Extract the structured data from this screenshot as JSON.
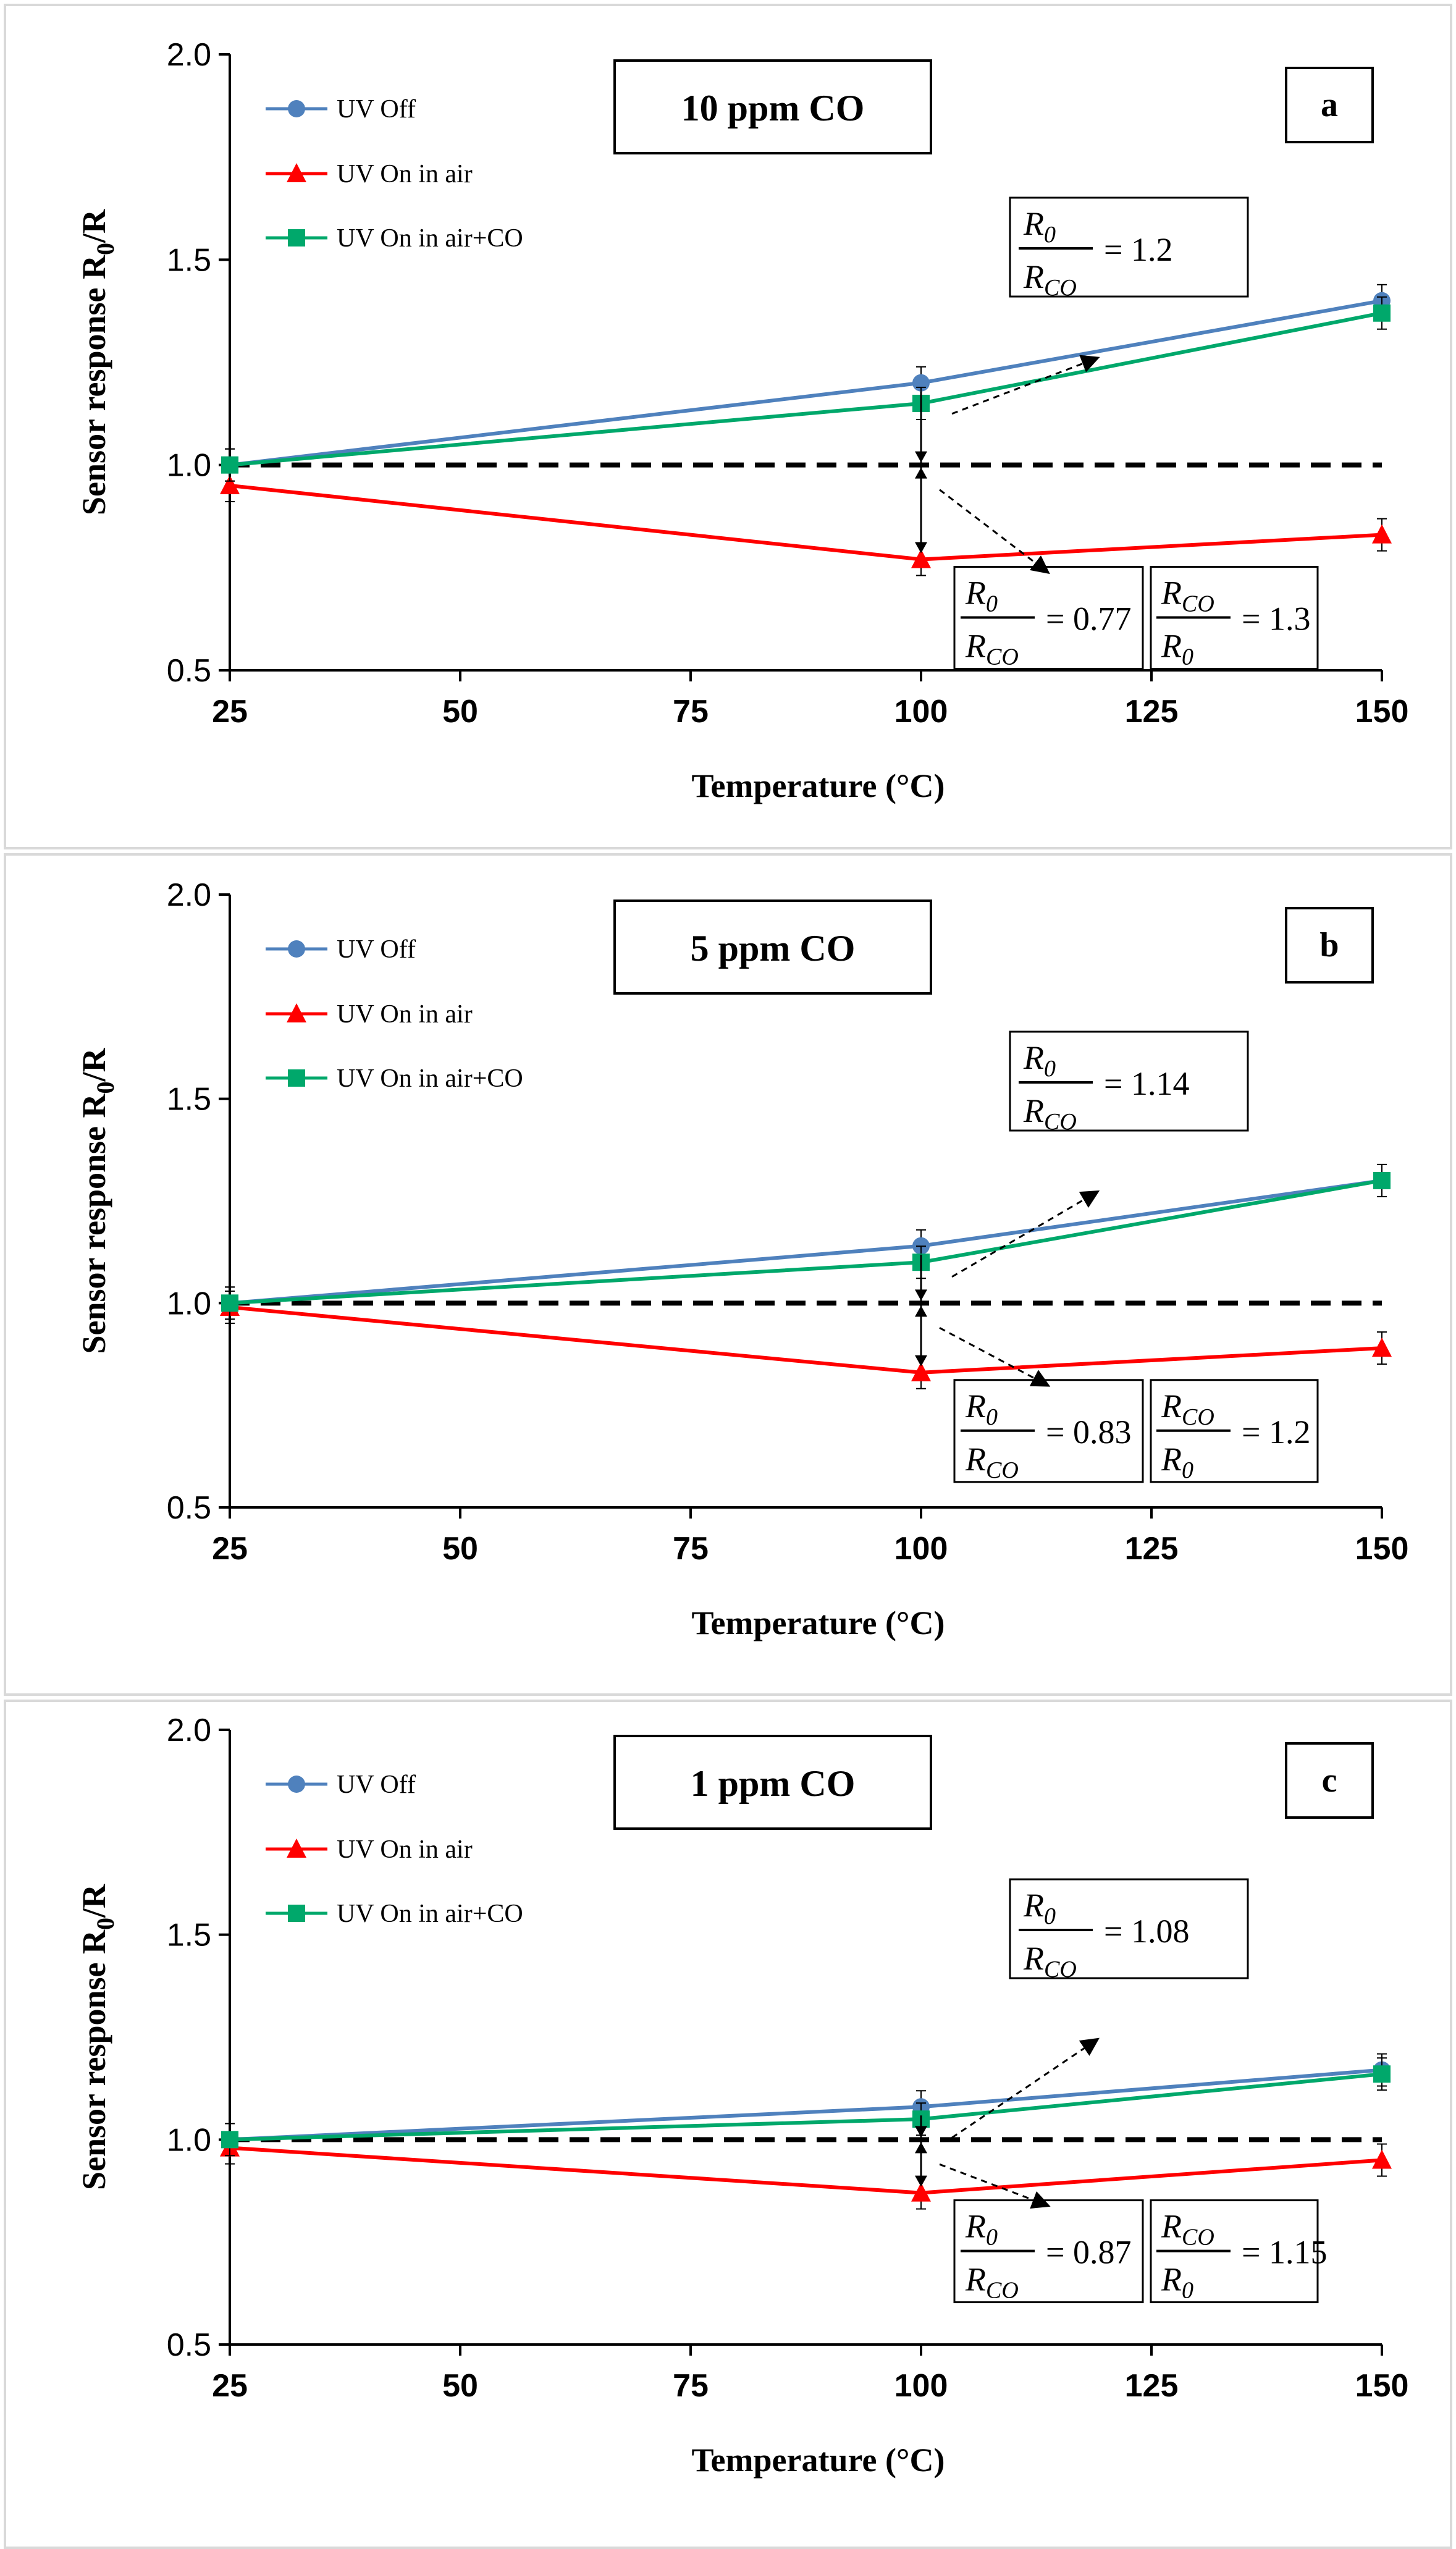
{
  "chart_data": [
    {
      "type": "line",
      "panel_letter": "a",
      "title": "10 ppm CO",
      "xlabel": "Temperature (°C)",
      "ylabel": "Sensor response R",
      "ylabel_sub": "0",
      "ylabel_tail": "/R",
      "x": [
        25,
        100,
        150
      ],
      "xlim": [
        25,
        150
      ],
      "ylim": [
        0.5,
        2.0
      ],
      "xticks": [
        "25",
        "50",
        "75",
        "100",
        "125",
        "150"
      ],
      "yticks": [
        "0.5",
        "1.0",
        "1.5",
        "2.0"
      ],
      "reference_line": 1.0,
      "series": [
        {
          "name": "UV Off",
          "values": [
            1.0,
            1.2,
            1.4
          ],
          "color": "#4f81bd",
          "marker": "circle"
        },
        {
          "name": "UV On in air",
          "values": [
            0.95,
            0.77,
            0.83
          ],
          "color": "#ff0000",
          "marker": "triangle"
        },
        {
          "name": "UV On in air+CO",
          "values": [
            1.0,
            1.15,
            1.37
          ],
          "color": "#00a86b",
          "marker": "square"
        }
      ],
      "annotations": {
        "upper": {
          "num": "R",
          "num_sub": "0",
          "den": "R",
          "den_sub": "CO",
          "value": "= 1.2"
        },
        "lower": {
          "num": "R",
          "num_sub": "0",
          "den": "R",
          "den_sub": "CO",
          "value": "= 0.77"
        },
        "inverse": {
          "num": "R",
          "num_sub": "CO",
          "den": "R",
          "den_sub": "0",
          "value": "= 1.3"
        }
      }
    },
    {
      "type": "line",
      "panel_letter": "b",
      "title": "5 ppm CO",
      "xlabel": "Temperature (°C)",
      "ylabel": "Sensor response R",
      "ylabel_sub": "0",
      "ylabel_tail": "/R",
      "x": [
        25,
        100,
        150
      ],
      "xlim": [
        25,
        150
      ],
      "ylim": [
        0.5,
        2.0
      ],
      "xticks": [
        "25",
        "50",
        "75",
        "100",
        "125",
        "150"
      ],
      "yticks": [
        "0.5",
        "1.0",
        "1.5",
        "2.0"
      ],
      "reference_line": 1.0,
      "series": [
        {
          "name": "UV Off",
          "values": [
            1.0,
            1.14,
            1.3
          ],
          "color": "#4f81bd",
          "marker": "circle"
        },
        {
          "name": "UV On in air",
          "values": [
            0.99,
            0.83,
            0.89
          ],
          "color": "#ff0000",
          "marker": "triangle"
        },
        {
          "name": "UV On in air+CO",
          "values": [
            1.0,
            1.1,
            1.3
          ],
          "color": "#00a86b",
          "marker": "square"
        }
      ],
      "annotations": {
        "upper": {
          "num": "R",
          "num_sub": "0",
          "den": "R",
          "den_sub": "CO",
          "value": "= 1.14"
        },
        "lower": {
          "num": "R",
          "num_sub": "0",
          "den": "R",
          "den_sub": "CO",
          "value": "= 0.83"
        },
        "inverse": {
          "num": "R",
          "num_sub": "CO",
          "den": "R",
          "den_sub": "0",
          "value": "= 1.2"
        }
      }
    },
    {
      "type": "line",
      "panel_letter": "c",
      "title": "1 ppm CO",
      "xlabel": "Temperature (°C)",
      "ylabel": "Sensor response R",
      "ylabel_sub": "0",
      "ylabel_tail": "/R",
      "x": [
        25,
        100,
        150
      ],
      "xlim": [
        25,
        150
      ],
      "ylim": [
        0.5,
        2.0
      ],
      "xticks": [
        "25",
        "50",
        "75",
        "100",
        "125",
        "150"
      ],
      "yticks": [
        "0.5",
        "1.0",
        "1.5",
        "2.0"
      ],
      "reference_line": 1.0,
      "series": [
        {
          "name": "UV Off",
          "values": [
            1.0,
            1.08,
            1.17
          ],
          "color": "#4f81bd",
          "marker": "circle"
        },
        {
          "name": "UV On in air",
          "values": [
            0.98,
            0.87,
            0.95
          ],
          "color": "#ff0000",
          "marker": "triangle"
        },
        {
          "name": "UV On in air+CO",
          "values": [
            1.0,
            1.05,
            1.16
          ],
          "color": "#00a86b",
          "marker": "square"
        }
      ],
      "annotations": {
        "upper": {
          "num": "R",
          "num_sub": "0",
          "den": "R",
          "den_sub": "CO",
          "value": "= 1.08"
        },
        "lower": {
          "num": "R",
          "num_sub": "0",
          "den": "R",
          "den_sub": "CO",
          "value": "= 0.87"
        },
        "inverse": {
          "num": "R",
          "num_sub": "CO",
          "den": "R",
          "den_sub": "0",
          "value": "= 1.15"
        }
      }
    }
  ]
}
